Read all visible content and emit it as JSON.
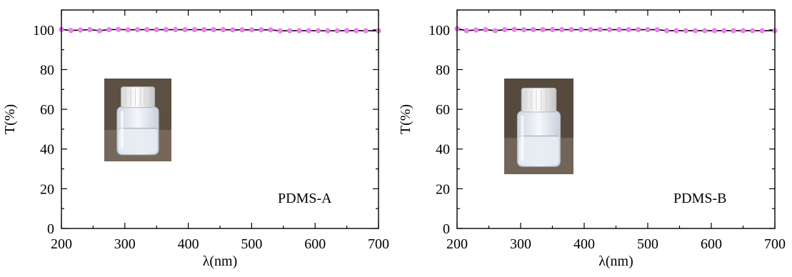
{
  "chart_data": [
    {
      "type": "line",
      "panel_label": "PDMS-A",
      "xlabel": "λ(nm)",
      "ylabel": "T(%)",
      "xlim": [
        200,
        700
      ],
      "ylim": [
        0,
        110
      ],
      "xticks": [
        200,
        300,
        400,
        500,
        600,
        700
      ],
      "yticks": [
        0,
        20,
        40,
        60,
        80,
        100
      ],
      "grid": false,
      "inset": "photo of a clear liquid in a glass vial with a white screw cap",
      "line_color": "#000000",
      "marker_color": "#ee82ee",
      "series": [
        {
          "x": [
            200,
            215,
            230,
            245,
            260,
            275,
            290,
            305,
            320,
            335,
            350,
            365,
            380,
            395,
            410,
            425,
            440,
            455,
            470,
            485,
            500,
            515,
            530,
            545,
            560,
            575,
            590,
            605,
            620,
            635,
            650,
            665,
            680,
            700
          ],
          "y": [
            100.2,
            99.7,
            99.9,
            100.1,
            99.6,
            100.1,
            100.2,
            100.0,
            100.1,
            100.1,
            100.1,
            100.1,
            100.1,
            100.1,
            100.1,
            100.1,
            100.1,
            100.1,
            100.0,
            100.0,
            100.0,
            100.0,
            100.0,
            99.5,
            99.6,
            99.6,
            99.6,
            99.6,
            99.5,
            99.6,
            99.6,
            99.6,
            99.6,
            99.5
          ]
        }
      ]
    },
    {
      "type": "line",
      "panel_label": "PDMS-B",
      "xlabel": "λ(nm)",
      "ylabel": "T(%)",
      "xlim": [
        200,
        700
      ],
      "ylim": [
        0,
        110
      ],
      "xticks": [
        200,
        300,
        400,
        500,
        600,
        700
      ],
      "yticks": [
        0,
        20,
        40,
        60,
        80,
        100
      ],
      "grid": false,
      "inset": "photo of a clear liquid in a glass vial with a white screw cap",
      "line_color": "#000000",
      "marker_color": "#ee82ee",
      "series": [
        {
          "x": [
            200,
            215,
            230,
            245,
            260,
            275,
            290,
            305,
            320,
            335,
            350,
            365,
            380,
            395,
            410,
            425,
            440,
            455,
            470,
            485,
            500,
            515,
            530,
            545,
            560,
            575,
            590,
            605,
            620,
            635,
            650,
            665,
            680,
            700
          ],
          "y": [
            100.6,
            99.6,
            99.9,
            100.1,
            99.6,
            100.1,
            100.2,
            100.1,
            100.1,
            100.1,
            100.1,
            100.1,
            100.1,
            100.1,
            100.1,
            100.1,
            100.1,
            100.1,
            100.1,
            100.1,
            100.1,
            100.1,
            99.6,
            99.6,
            99.6,
            99.6,
            99.6,
            99.6,
            99.6,
            99.6,
            99.6,
            99.6,
            99.6,
            99.6
          ]
        }
      ]
    }
  ]
}
